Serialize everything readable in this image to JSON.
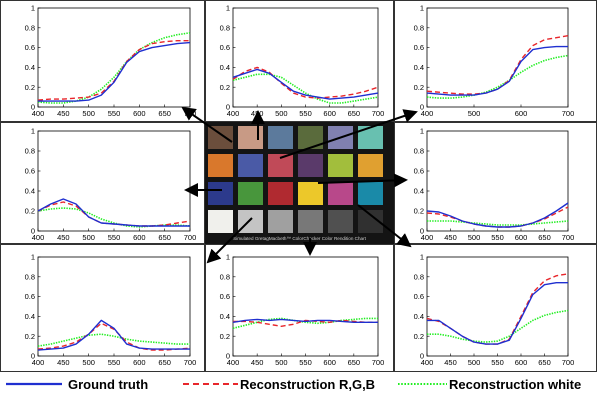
{
  "legend": {
    "ground_truth": "Ground truth",
    "reconstruction_rgb": "Reconstruction R,G,B",
    "reconstruction_white": "Reconstruction white"
  },
  "colors": {
    "ground_truth": "#1f2fd0",
    "reconstruction_rgb": "#e8262b",
    "reconstruction_white": "#22ee22"
  },
  "checker": {
    "title": "Simulated GretagMacbeth™ ColorChecker Color Rendition Chart",
    "swatches": [
      [
        "#6b4e3c",
        "#c89a85",
        "#5c7a9c",
        "#5a6b3c",
        "#8080b0",
        "#68c0b0"
      ],
      [
        "#d9782c",
        "#4a5aa6",
        "#c04a58",
        "#5a3a6a",
        "#a2be3c",
        "#e0a030"
      ],
      [
        "#2c3a8c",
        "#48963c",
        "#b02a30",
        "#ecc82a",
        "#b8488a",
        "#1a8aa8"
      ],
      [
        "#f0f0ec",
        "#c4c4c4",
        "#a0a0a0",
        "#787878",
        "#505050",
        "#303030"
      ]
    ]
  },
  "chart_data": [
    {
      "type": "line",
      "xlim": [
        400,
        700
      ],
      "ylim": [
        0,
        1
      ],
      "xticks": [
        "400",
        "450",
        "500",
        "550",
        "600",
        "650",
        "700"
      ],
      "yticks": [
        "0",
        "0.2",
        "0.4",
        "0.6",
        "0.8",
        "1"
      ],
      "x": [
        400,
        425,
        450,
        475,
        500,
        525,
        550,
        575,
        600,
        625,
        650,
        675,
        700
      ],
      "series": [
        {
          "name": "Ground truth",
          "values": [
            0.06,
            0.06,
            0.06,
            0.06,
            0.07,
            0.12,
            0.25,
            0.45,
            0.56,
            0.6,
            0.62,
            0.64,
            0.65
          ]
        },
        {
          "name": "Reconstruction R,G,B",
          "values": [
            0.07,
            0.08,
            0.08,
            0.09,
            0.1,
            0.14,
            0.26,
            0.46,
            0.58,
            0.64,
            0.66,
            0.67,
            0.67
          ]
        },
        {
          "name": "Reconstruction white",
          "values": [
            0.05,
            0.04,
            0.04,
            0.06,
            0.1,
            0.18,
            0.3,
            0.46,
            0.58,
            0.65,
            0.7,
            0.73,
            0.75
          ]
        }
      ]
    },
    {
      "type": "line",
      "xlim": [
        400,
        700
      ],
      "ylim": [
        0,
        1
      ],
      "xticks": [
        "400",
        "450",
        "500",
        "550",
        "600",
        "650",
        "700"
      ],
      "yticks": [
        "0",
        "0.2",
        "0.4",
        "0.6",
        "0.8",
        "1"
      ],
      "x": [
        400,
        425,
        450,
        475,
        500,
        525,
        550,
        575,
        600,
        625,
        650,
        675,
        700
      ],
      "series": [
        {
          "name": "Ground truth",
          "values": [
            0.3,
            0.34,
            0.38,
            0.34,
            0.25,
            0.16,
            0.12,
            0.1,
            0.08,
            0.09,
            0.1,
            0.12,
            0.14
          ]
        },
        {
          "name": "Reconstruction R,G,B",
          "values": [
            0.28,
            0.36,
            0.4,
            0.35,
            0.24,
            0.14,
            0.1,
            0.09,
            0.1,
            0.11,
            0.13,
            0.16,
            0.2
          ]
        },
        {
          "name": "Reconstruction white",
          "values": [
            0.27,
            0.3,
            0.33,
            0.33,
            0.3,
            0.22,
            0.14,
            0.08,
            0.04,
            0.04,
            0.06,
            0.08,
            0.1
          ]
        }
      ]
    },
    {
      "type": "line",
      "xlim": [
        400,
        700
      ],
      "ylim": [
        0,
        1
      ],
      "xticks": [
        "400",
        "500",
        "600",
        "700"
      ],
      "yticks": [
        "0",
        "0.2",
        "0.4",
        "0.6",
        "0.8",
        "1"
      ],
      "x": [
        400,
        425,
        450,
        475,
        500,
        525,
        550,
        575,
        600,
        625,
        650,
        675,
        700
      ],
      "series": [
        {
          "name": "Ground truth",
          "values": [
            0.14,
            0.13,
            0.12,
            0.12,
            0.12,
            0.14,
            0.18,
            0.26,
            0.46,
            0.58,
            0.6,
            0.61,
            0.61
          ]
        },
        {
          "name": "Reconstruction R,G,B",
          "values": [
            0.16,
            0.15,
            0.14,
            0.13,
            0.13,
            0.14,
            0.18,
            0.27,
            0.48,
            0.62,
            0.68,
            0.7,
            0.72
          ]
        },
        {
          "name": "Reconstruction white",
          "values": [
            0.1,
            0.09,
            0.09,
            0.1,
            0.12,
            0.15,
            0.2,
            0.27,
            0.35,
            0.42,
            0.47,
            0.5,
            0.52
          ]
        }
      ]
    },
    {
      "type": "line",
      "xlim": [
        400,
        700
      ],
      "ylim": [
        0,
        1
      ],
      "xticks": [
        "400",
        "450",
        "500",
        "550",
        "600",
        "650",
        "700"
      ],
      "yticks": [
        "0",
        "0.2",
        "0.4",
        "0.6",
        "0.8",
        "1"
      ],
      "x": [
        400,
        425,
        450,
        475,
        500,
        525,
        550,
        575,
        600,
        625,
        650,
        675,
        700
      ],
      "series": [
        {
          "name": "Ground truth",
          "values": [
            0.2,
            0.27,
            0.32,
            0.27,
            0.14,
            0.08,
            0.07,
            0.06,
            0.05,
            0.05,
            0.05,
            0.05,
            0.05
          ]
        },
        {
          "name": "Reconstruction R,G,B",
          "values": [
            0.2,
            0.26,
            0.29,
            0.25,
            0.14,
            0.08,
            0.07,
            0.06,
            0.05,
            0.05,
            0.06,
            0.08,
            0.1
          ]
        },
        {
          "name": "Reconstruction white",
          "values": [
            0.2,
            0.22,
            0.23,
            0.22,
            0.18,
            0.12,
            0.08,
            0.05,
            0.04,
            0.05,
            0.06,
            0.06,
            0.05
          ]
        }
      ]
    },
    {
      "type": "line",
      "xlim": [
        400,
        700
      ],
      "ylim": [
        0,
        1
      ],
      "xticks": [
        "400",
        "450",
        "500",
        "550",
        "600",
        "650",
        "700"
      ],
      "yticks": [
        "0",
        "0.2",
        "0.4",
        "0.6",
        "0.8",
        "1"
      ],
      "x": [
        400,
        425,
        450,
        475,
        500,
        525,
        550,
        575,
        600,
        625,
        650,
        675,
        700
      ],
      "series": [
        {
          "name": "Ground truth",
          "values": [
            0.2,
            0.19,
            0.15,
            0.1,
            0.07,
            0.05,
            0.04,
            0.04,
            0.05,
            0.08,
            0.13,
            0.2,
            0.28
          ]
        },
        {
          "name": "Reconstruction R,G,B",
          "values": [
            0.18,
            0.17,
            0.14,
            0.1,
            0.07,
            0.05,
            0.04,
            0.04,
            0.05,
            0.08,
            0.12,
            0.18,
            0.24
          ]
        },
        {
          "name": "Reconstruction white",
          "values": [
            0.1,
            0.1,
            0.1,
            0.09,
            0.08,
            0.07,
            0.06,
            0.06,
            0.06,
            0.07,
            0.08,
            0.09,
            0.1
          ]
        }
      ]
    },
    {
      "type": "line",
      "xlim": [
        400,
        700
      ],
      "ylim": [
        0,
        1
      ],
      "xticks": [
        "400",
        "450",
        "500",
        "550",
        "600",
        "650",
        "700"
      ],
      "yticks": [
        "0",
        "0.2",
        "0.4",
        "0.6",
        "0.8",
        "1"
      ],
      "x": [
        400,
        425,
        450,
        475,
        500,
        525,
        550,
        575,
        600,
        625,
        650,
        675,
        700
      ],
      "series": [
        {
          "name": "Ground truth",
          "values": [
            0.06,
            0.07,
            0.08,
            0.12,
            0.22,
            0.36,
            0.28,
            0.12,
            0.08,
            0.07,
            0.07,
            0.07,
            0.07
          ]
        },
        {
          "name": "Reconstruction R,G,B",
          "values": [
            0.07,
            0.08,
            0.1,
            0.14,
            0.22,
            0.33,
            0.27,
            0.14,
            0.08,
            0.06,
            0.06,
            0.07,
            0.08
          ]
        },
        {
          "name": "Reconstruction white",
          "values": [
            0.1,
            0.12,
            0.15,
            0.18,
            0.21,
            0.22,
            0.2,
            0.17,
            0.15,
            0.14,
            0.13,
            0.12,
            0.12
          ]
        }
      ]
    },
    {
      "type": "line",
      "xlim": [
        400,
        700
      ],
      "ylim": [
        0,
        1
      ],
      "xticks": [
        "400",
        "450",
        "500",
        "550",
        "600",
        "650",
        "700"
      ],
      "yticks": [
        "0",
        "0.2",
        "0.4",
        "0.6",
        "0.8",
        "1"
      ],
      "x": [
        400,
        425,
        450,
        475,
        500,
        525,
        550,
        575,
        600,
        625,
        650,
        675,
        700
      ],
      "series": [
        {
          "name": "Ground truth",
          "values": [
            0.34,
            0.36,
            0.37,
            0.36,
            0.37,
            0.36,
            0.35,
            0.36,
            0.36,
            0.35,
            0.34,
            0.34,
            0.34
          ]
        },
        {
          "name": "Reconstruction R,G,B",
          "values": [
            0.35,
            0.35,
            0.34,
            0.32,
            0.3,
            0.32,
            0.36,
            0.35,
            0.34,
            0.36,
            0.35,
            0.34,
            0.34
          ]
        },
        {
          "name": "Reconstruction white",
          "values": [
            0.28,
            0.31,
            0.34,
            0.37,
            0.38,
            0.36,
            0.34,
            0.33,
            0.34,
            0.36,
            0.37,
            0.38,
            0.38
          ]
        }
      ]
    },
    {
      "type": "line",
      "xlim": [
        400,
        700
      ],
      "ylim": [
        0,
        1
      ],
      "xticks": [
        "400",
        "450",
        "500",
        "550",
        "600",
        "650",
        "700"
      ],
      "yticks": [
        "0",
        "0.2",
        "0.4",
        "0.6",
        "0.8",
        "1"
      ],
      "x": [
        400,
        425,
        450,
        475,
        500,
        525,
        550,
        575,
        600,
        625,
        650,
        675,
        700
      ],
      "series": [
        {
          "name": "Ground truth",
          "values": [
            0.36,
            0.36,
            0.28,
            0.2,
            0.14,
            0.12,
            0.12,
            0.16,
            0.38,
            0.62,
            0.72,
            0.74,
            0.74
          ]
        },
        {
          "name": "Reconstruction R,G,B",
          "values": [
            0.38,
            0.35,
            0.28,
            0.2,
            0.14,
            0.12,
            0.12,
            0.17,
            0.4,
            0.64,
            0.76,
            0.81,
            0.83
          ]
        },
        {
          "name": "Reconstruction white",
          "values": [
            0.22,
            0.22,
            0.2,
            0.17,
            0.15,
            0.14,
            0.15,
            0.2,
            0.28,
            0.36,
            0.41,
            0.44,
            0.46
          ]
        }
      ]
    }
  ]
}
